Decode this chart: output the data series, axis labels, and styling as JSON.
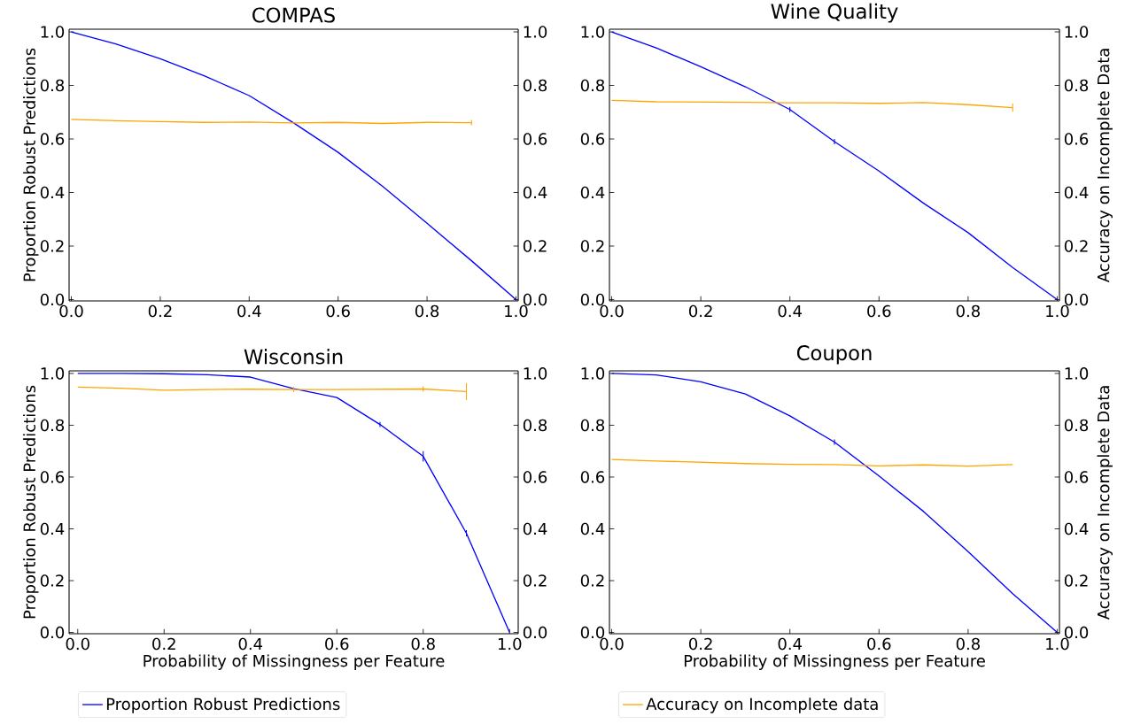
{
  "chart_data": [
    {
      "type": "line",
      "title": "COMPAS",
      "ylabel": "Proportion Robust Predictions",
      "x": [
        0.0,
        0.1,
        0.2,
        0.3,
        0.4,
        0.5,
        0.6,
        0.7,
        0.8,
        0.9,
        1.0
      ],
      "series": [
        {
          "color": "#0000ff",
          "values": [
            1.0,
            0.955,
            0.9,
            0.835,
            0.762,
            0.66,
            0.55,
            0.423,
            0.285,
            0.145,
            0.0
          ],
          "errors": [
            null,
            null,
            null,
            null,
            null,
            null,
            null,
            null,
            null,
            null,
            null
          ]
        },
        {
          "color": "#ffa500",
          "axis": "y2",
          "x": [
            0.0,
            0.1,
            0.2,
            0.3,
            0.4,
            0.5,
            0.6,
            0.7,
            0.8,
            0.9
          ],
          "values": [
            0.673,
            0.668,
            0.665,
            0.662,
            0.663,
            0.66,
            0.662,
            0.658,
            0.662,
            0.661
          ],
          "errors": [
            null,
            null,
            null,
            null,
            null,
            null,
            null,
            null,
            null,
            0.01
          ]
        }
      ],
      "xlim": [
        -0.005,
        1.005
      ],
      "ylim": [
        -0.005,
        1.01
      ],
      "y2lim": [
        -0.005,
        1.01
      ],
      "xticks": [
        {
          "value": 0.0,
          "label": "0.0"
        },
        {
          "value": 0.2,
          "label": "0.2"
        },
        {
          "value": 0.4,
          "label": "0.4"
        },
        {
          "value": 0.6,
          "label": "0.6"
        },
        {
          "value": 0.8,
          "label": "0.8"
        },
        {
          "value": 1.0,
          "label": "1.0"
        }
      ],
      "yticks": [
        {
          "value": 0.0,
          "label": "0.0"
        },
        {
          "value": 0.2,
          "label": "0.2"
        },
        {
          "value": 0.4,
          "label": "0.4"
        },
        {
          "value": 0.6,
          "label": "0.6"
        },
        {
          "value": 0.8,
          "label": "0.8"
        },
        {
          "value": 1.0,
          "label": "1.0"
        }
      ],
      "y2ticks": [
        {
          "value": 0.0,
          "label": "0.0"
        },
        {
          "value": 0.2,
          "label": "0.2"
        },
        {
          "value": 0.4,
          "label": "0.4"
        },
        {
          "value": 0.6,
          "label": "0.6"
        },
        {
          "value": 0.8,
          "label": "0.8"
        },
        {
          "value": 1.0,
          "label": "1.0"
        }
      ]
    },
    {
      "type": "line",
      "title": "Wine Quality",
      "y2label": "Accuracy on Incomplete Data",
      "x": [
        0.0,
        0.1,
        0.2,
        0.3,
        0.4,
        0.5,
        0.6,
        0.7,
        0.8,
        0.9,
        1.0
      ],
      "series": [
        {
          "color": "#0000ff",
          "values": [
            1.0,
            0.94,
            0.87,
            0.795,
            0.71,
            0.59,
            0.48,
            0.36,
            0.25,
            0.12,
            0.0
          ],
          "errors": [
            null,
            null,
            null,
            null,
            0.01,
            0.01,
            null,
            null,
            null,
            null,
            null
          ]
        },
        {
          "color": "#ffa500",
          "axis": "y2",
          "x": [
            0.0,
            0.1,
            0.2,
            0.3,
            0.4,
            0.5,
            0.6,
            0.7,
            0.8,
            0.9
          ],
          "values": [
            0.744,
            0.739,
            0.738,
            0.737,
            0.735,
            0.735,
            0.733,
            0.736,
            0.728,
            0.717
          ],
          "errors": [
            null,
            null,
            null,
            null,
            null,
            null,
            null,
            null,
            null,
            0.015
          ]
        }
      ],
      "xlim": [
        -0.005,
        1.005
      ],
      "ylim": [
        -0.005,
        1.01
      ],
      "y2lim": [
        -0.005,
        1.01
      ],
      "xticks": [
        {
          "value": 0.0,
          "label": "0.0"
        },
        {
          "value": 0.2,
          "label": "0.2"
        },
        {
          "value": 0.4,
          "label": "0.4"
        },
        {
          "value": 0.6,
          "label": "0.6"
        },
        {
          "value": 0.8,
          "label": "0.8"
        },
        {
          "value": 1.0,
          "label": "1.0"
        }
      ],
      "yticks": [
        {
          "value": 0.0,
          "label": "0.0"
        },
        {
          "value": 0.2,
          "label": "0.2"
        },
        {
          "value": 0.4,
          "label": "0.4"
        },
        {
          "value": 0.6,
          "label": "0.6"
        },
        {
          "value": 0.8,
          "label": "0.8"
        },
        {
          "value": 1.0,
          "label": "1.0"
        }
      ],
      "y2ticks": [
        {
          "value": 0.0,
          "label": "0.0"
        },
        {
          "value": 0.2,
          "label": "0.2"
        },
        {
          "value": 0.4,
          "label": "0.4"
        },
        {
          "value": 0.6,
          "label": "0.6"
        },
        {
          "value": 0.8,
          "label": "0.8"
        },
        {
          "value": 1.0,
          "label": "1.0"
        }
      ]
    },
    {
      "type": "line",
      "title": "Wisconsin",
      "xlabel": "Probability of Missingness per Feature",
      "ylabel": "Proportion Robust Predictions",
      "legend": "bottom",
      "x": [
        0.0,
        0.1,
        0.2,
        0.3,
        0.4,
        0.5,
        0.6,
        0.7,
        0.8,
        0.9,
        1.0
      ],
      "series": [
        {
          "name": "Proportion Robust Predictions",
          "color": "#0000ff",
          "values": [
            1.0,
            1.0,
            0.999,
            0.995,
            0.986,
            0.941,
            0.907,
            0.803,
            0.68,
            0.383,
            0.0
          ],
          "errors": [
            null,
            null,
            null,
            null,
            null,
            null,
            null,
            0.01,
            0.02,
            0.012,
            null
          ]
        },
        {
          "color": "#ffa500",
          "axis": "y2",
          "x": [
            0.0,
            0.1,
            0.2,
            0.3,
            0.4,
            0.5,
            0.6,
            0.7,
            0.8,
            0.9
          ],
          "values": [
            0.947,
            0.943,
            0.935,
            0.938,
            0.939,
            0.938,
            0.938,
            0.939,
            0.94,
            0.93
          ],
          "errors": [
            null,
            null,
            null,
            null,
            null,
            0.01,
            null,
            null,
            0.01,
            0.033
          ]
        }
      ],
      "xlim": [
        -0.02,
        1.02
      ],
      "ylim": [
        -0.005,
        1.01
      ],
      "y2lim": [
        -0.005,
        1.01
      ],
      "xticks": [
        {
          "value": 0.0,
          "label": "0.0"
        },
        {
          "value": 0.2,
          "label": "0.2"
        },
        {
          "value": 0.4,
          "label": "0.4"
        },
        {
          "value": 0.6,
          "label": "0.6"
        },
        {
          "value": 0.8,
          "label": "0.8"
        },
        {
          "value": 1.0,
          "label": "1.0"
        }
      ],
      "yticks": [
        {
          "value": 0.0,
          "label": "0.0"
        },
        {
          "value": 0.2,
          "label": "0.2"
        },
        {
          "value": 0.4,
          "label": "0.4"
        },
        {
          "value": 0.6,
          "label": "0.6"
        },
        {
          "value": 0.8,
          "label": "0.8"
        },
        {
          "value": 1.0,
          "label": "1.0"
        }
      ],
      "y2ticks": [
        {
          "value": 0.0,
          "label": "0.0"
        },
        {
          "value": 0.2,
          "label": "0.2"
        },
        {
          "value": 0.4,
          "label": "0.4"
        },
        {
          "value": 0.6,
          "label": "0.6"
        },
        {
          "value": 0.8,
          "label": "0.8"
        },
        {
          "value": 1.0,
          "label": "1.0"
        }
      ]
    },
    {
      "type": "line",
      "title": "Coupon",
      "xlabel": "Probability of Missingness per Feature",
      "y2label": "Accuracy on Incomplete Data",
      "legend": "bottom",
      "x": [
        0.0,
        0.1,
        0.2,
        0.3,
        0.4,
        0.5,
        0.6,
        0.7,
        0.8,
        0.9,
        1.0
      ],
      "series": [
        {
          "color": "#0000ff",
          "values": [
            1.0,
            0.994,
            0.968,
            0.921,
            0.836,
            0.735,
            0.604,
            0.467,
            0.312,
            0.15,
            0.0
          ],
          "errors": [
            null,
            null,
            null,
            null,
            null,
            0.01,
            null,
            null,
            null,
            null,
            null
          ]
        },
        {
          "name": "Accuracy on Incomplete data",
          "color": "#ffa500",
          "axis": "y2",
          "x": [
            0.0,
            0.1,
            0.2,
            0.3,
            0.4,
            0.5,
            0.6,
            0.7,
            0.8,
            0.9
          ],
          "values": [
            0.668,
            0.662,
            0.657,
            0.652,
            0.649,
            0.648,
            0.643,
            0.647,
            0.642,
            0.648
          ]
        }
      ],
      "xlim": [
        -0.005,
        1.005
      ],
      "ylim": [
        -0.005,
        1.01
      ],
      "y2lim": [
        -0.005,
        1.01
      ],
      "xticks": [
        {
          "value": 0.0,
          "label": "0.0"
        },
        {
          "value": 0.2,
          "label": "0.2"
        },
        {
          "value": 0.4,
          "label": "0.4"
        },
        {
          "value": 0.6,
          "label": "0.6"
        },
        {
          "value": 0.8,
          "label": "0.8"
        },
        {
          "value": 1.0,
          "label": "1.0"
        }
      ],
      "yticks": [
        {
          "value": 0.0,
          "label": "0.0"
        },
        {
          "value": 0.2,
          "label": "0.2"
        },
        {
          "value": 0.4,
          "label": "0.4"
        },
        {
          "value": 0.6,
          "label": "0.6"
        },
        {
          "value": 0.8,
          "label": "0.8"
        },
        {
          "value": 1.0,
          "label": "1.0"
        }
      ],
      "y2ticks": [
        {
          "value": 0.0,
          "label": "0.0"
        },
        {
          "value": 0.2,
          "label": "0.2"
        },
        {
          "value": 0.4,
          "label": "0.4"
        },
        {
          "value": 0.6,
          "label": "0.6"
        },
        {
          "value": 0.8,
          "label": "0.8"
        },
        {
          "value": 1.0,
          "label": "1.0"
        }
      ]
    }
  ]
}
